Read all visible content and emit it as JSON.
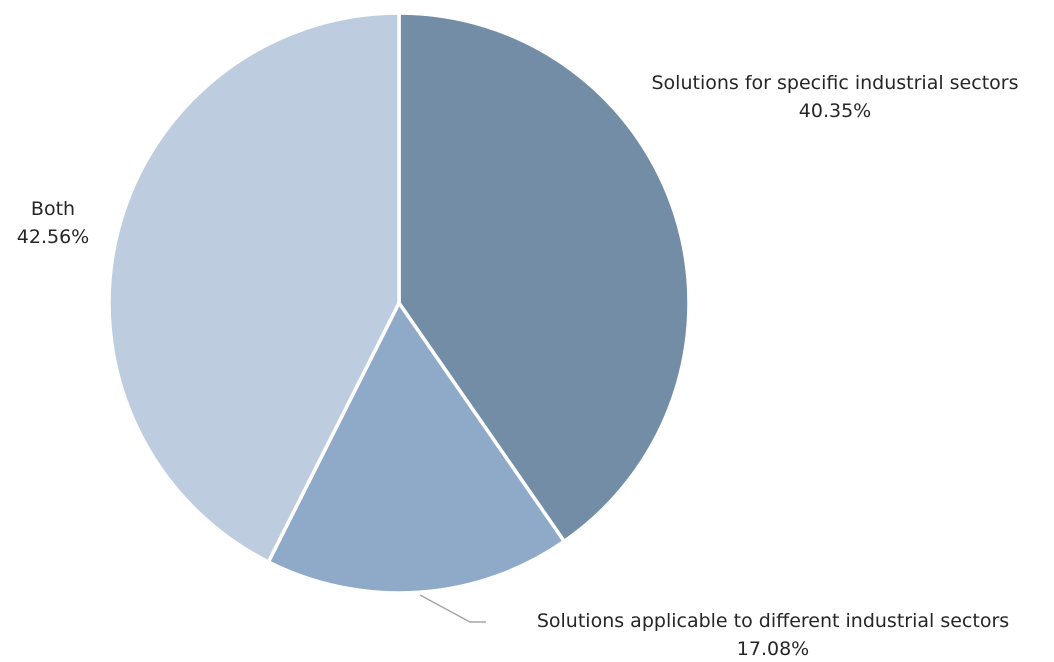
{
  "chart_data": {
    "type": "pie",
    "title": "",
    "start_angle_deg": 0,
    "direction": "clockwise",
    "slices": [
      {
        "name": "Solutions  for specific industrial sectors",
        "value": 40.35,
        "label": "40.35%",
        "color": "#738da6"
      },
      {
        "name": "Solutions  applicable to  different industrial  sectors",
        "value": 17.08,
        "label": "17.08%",
        "color": "#8eaac8"
      },
      {
        "name": "Both",
        "value": 42.56,
        "label": "42.56%",
        "color": "#bdcddf"
      }
    ],
    "legend": "none",
    "slice_border_color": "#ffffff",
    "leader_line_color": "#a6a6a6"
  }
}
